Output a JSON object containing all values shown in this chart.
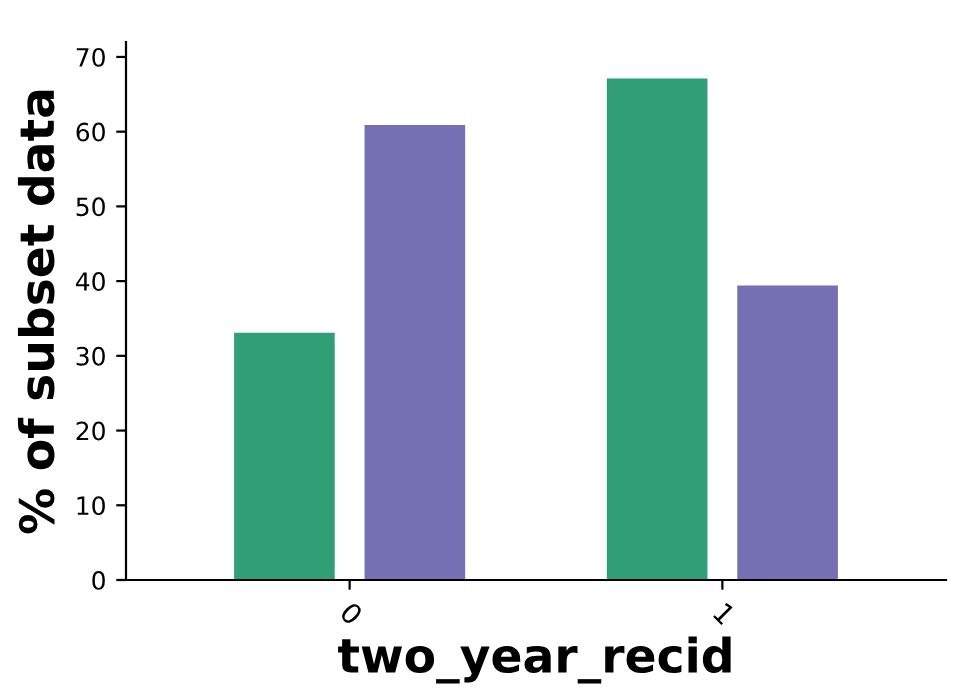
{
  "chart_data": {
    "type": "bar",
    "xlabel": "two_year_recid",
    "ylabel": "% of subset data",
    "categories": [
      "0",
      "1"
    ],
    "series": [
      {
        "color": "#319e78",
        "values": [
          33.1,
          67.1
        ]
      },
      {
        "color": "#7570b3",
        "values": [
          60.9,
          39.4
        ]
      }
    ],
    "ylim": [
      0,
      72
    ],
    "yticks": [
      0,
      10,
      20,
      30,
      40,
      50,
      60,
      70
    ],
    "grid": false,
    "legend": false
  }
}
